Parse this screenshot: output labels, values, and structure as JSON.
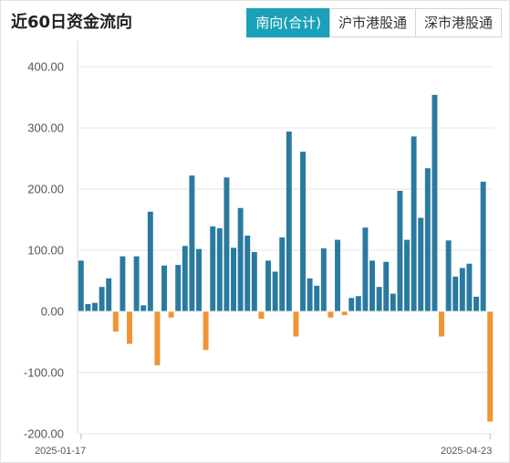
{
  "title": "近60日资金流向",
  "tabs": [
    {
      "label": "南向(合计)",
      "active": true
    },
    {
      "label": "沪市港股通",
      "active": false
    },
    {
      "label": "深市港股通",
      "active": false
    }
  ],
  "colors": {
    "positive": "#2a7aa0",
    "negative": "#f29331",
    "accent": "#1aa0b8"
  },
  "chart_data": {
    "type": "bar",
    "title": "近60日资金流向",
    "xlabel": "",
    "ylabel": "",
    "ylim": [
      -200,
      400
    ],
    "y_ticks": [
      "400.00",
      "300.00",
      "200.00",
      "100.00",
      "0.00",
      "-100.00",
      "-200.00"
    ],
    "x_start": "2025-01-17",
    "x_end": "2025-04-23",
    "grid": "horizontal",
    "values": [
      83,
      12,
      14,
      40,
      54,
      -33,
      90,
      -53,
      90,
      10,
      163,
      -88,
      75,
      -10,
      76,
      107,
      222,
      102,
      -63,
      139,
      136,
      219,
      104,
      169,
      124,
      97,
      -12,
      83,
      65,
      121,
      294,
      -41,
      261,
      54,
      42,
      103,
      -10,
      117,
      -6,
      22,
      25,
      137,
      83,
      40,
      81,
      29,
      197,
      117,
      286,
      153,
      234,
      354,
      -41,
      116,
      57,
      71,
      78,
      24,
      212,
      -180
    ]
  }
}
